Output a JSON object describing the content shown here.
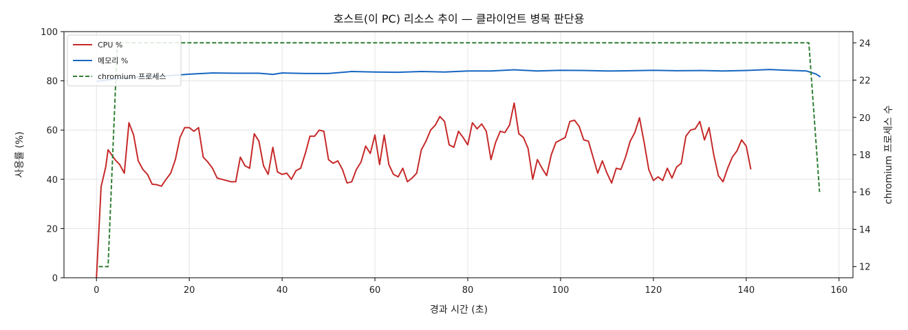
{
  "chart_data": {
    "type": "line",
    "title": "호스트(이 PC) 리소스 추이 — 클라이언트 병목 판단용",
    "xlabel": "경과 시간 (초)",
    "ylabel": "사용률 (%)",
    "y2label": "chromium 프로세스 수",
    "xlim": [
      -7,
      163
    ],
    "ylim": [
      0,
      100
    ],
    "y2lim": [
      11.4,
      24.6
    ],
    "xticks": [
      0,
      20,
      40,
      60,
      80,
      100,
      120,
      140,
      160
    ],
    "yticks": [
      0,
      20,
      40,
      60,
      80,
      100
    ],
    "y2ticks": [
      12,
      14,
      16,
      18,
      20,
      22,
      24
    ],
    "grid": true,
    "legend": "top-left",
    "series": [
      {
        "name": "CPU %",
        "axis": "left",
        "color": "#c62828",
        "style": "solid",
        "points": [
          [
            0,
            0
          ],
          [
            1,
            37
          ],
          [
            2,
            45
          ],
          [
            2.5,
            52
          ],
          [
            4,
            48
          ],
          [
            5,
            46
          ],
          [
            6,
            42.5
          ],
          [
            7,
            63
          ],
          [
            8,
            58
          ],
          [
            9,
            47.5
          ],
          [
            10,
            44
          ],
          [
            11,
            42
          ],
          [
            12,
            38
          ],
          [
            13,
            37.8
          ],
          [
            14,
            37.2
          ],
          [
            15,
            40
          ],
          [
            16,
            42.5
          ],
          [
            17,
            48
          ],
          [
            18,
            57
          ],
          [
            19,
            61
          ],
          [
            20,
            61
          ],
          [
            21,
            59.5
          ],
          [
            22,
            61
          ],
          [
            23,
            49
          ],
          [
            24,
            47
          ],
          [
            25,
            44.5
          ],
          [
            26,
            40.5
          ],
          [
            27,
            40
          ],
          [
            28,
            39.5
          ],
          [
            29,
            39
          ],
          [
            30,
            39
          ],
          [
            31,
            49
          ],
          [
            32,
            45.5
          ],
          [
            33,
            44.5
          ],
          [
            34,
            58.5
          ],
          [
            35,
            55.5
          ],
          [
            36,
            45.5
          ],
          [
            37,
            42
          ],
          [
            38,
            53
          ],
          [
            39,
            43
          ],
          [
            40,
            42
          ],
          [
            41,
            42.5
          ],
          [
            42,
            40
          ],
          [
            43,
            43.5
          ],
          [
            44,
            44.5
          ],
          [
            45,
            50.5
          ],
          [
            46,
            57.5
          ],
          [
            47,
            57.5
          ],
          [
            48,
            60
          ],
          [
            49,
            59.5
          ],
          [
            50,
            48
          ],
          [
            51,
            46.5
          ],
          [
            52,
            47.5
          ],
          [
            53,
            44
          ],
          [
            54,
            38.5
          ],
          [
            55,
            39
          ],
          [
            56,
            44
          ],
          [
            57,
            47
          ],
          [
            58,
            53.5
          ],
          [
            59,
            50.5
          ],
          [
            60,
            58
          ],
          [
            61,
            46
          ],
          [
            62,
            58
          ],
          [
            63,
            46
          ],
          [
            64,
            42
          ],
          [
            65,
            41
          ],
          [
            66,
            44.5
          ],
          [
            67,
            39
          ],
          [
            68,
            40.5
          ],
          [
            69,
            42.5
          ],
          [
            70,
            52
          ],
          [
            71,
            55.5
          ],
          [
            72,
            60
          ],
          [
            73,
            62
          ],
          [
            74,
            65.5
          ],
          [
            75,
            63.5
          ],
          [
            76,
            54
          ],
          [
            77,
            53
          ],
          [
            78,
            59.5
          ],
          [
            79,
            57
          ],
          [
            80,
            54
          ],
          [
            81,
            63
          ],
          [
            82,
            60.5
          ],
          [
            83,
            62.5
          ],
          [
            84,
            59.5
          ],
          [
            85,
            48
          ],
          [
            86,
            55
          ],
          [
            87,
            59.5
          ],
          [
            88,
            59
          ],
          [
            89,
            62
          ],
          [
            90,
            71
          ],
          [
            91,
            58.5
          ],
          [
            92,
            57
          ],
          [
            93,
            52.5
          ],
          [
            94,
            40
          ],
          [
            95,
            48
          ],
          [
            96,
            44.5
          ],
          [
            97,
            41.5
          ],
          [
            98,
            50
          ],
          [
            99,
            55
          ],
          [
            100,
            56
          ],
          [
            101,
            57
          ],
          [
            102,
            63.5
          ],
          [
            103,
            64
          ],
          [
            104,
            61.5
          ],
          [
            105,
            56
          ],
          [
            106,
            55.5
          ],
          [
            107,
            49
          ],
          [
            108,
            42.5
          ],
          [
            109,
            47.5
          ],
          [
            110,
            42.5
          ],
          [
            111,
            38.5
          ],
          [
            112,
            44.5
          ],
          [
            113,
            44
          ],
          [
            114,
            49
          ],
          [
            115,
            55.5
          ],
          [
            116,
            59
          ],
          [
            117,
            65
          ],
          [
            118,
            55
          ],
          [
            119,
            44
          ],
          [
            120,
            39.5
          ],
          [
            121,
            41
          ],
          [
            122,
            39.5
          ],
          [
            123,
            44.5
          ],
          [
            124,
            40.5
          ],
          [
            125,
            45
          ],
          [
            126,
            46.5
          ],
          [
            127,
            57.5
          ],
          [
            128,
            60
          ],
          [
            129,
            60.5
          ],
          [
            130,
            63.5
          ],
          [
            131,
            56
          ],
          [
            132,
            61
          ],
          [
            133,
            50
          ],
          [
            134,
            41.5
          ],
          [
            135,
            39
          ],
          [
            136,
            44.5
          ],
          [
            137,
            49
          ],
          [
            138,
            51.5
          ],
          [
            139,
            56
          ],
          [
            140,
            53.5
          ],
          [
            141,
            44
          ]
        ]
      },
      {
        "name": "메모리 %",
        "axis": "left",
        "color": "#1565c0",
        "style": "solid",
        "points": [
          [
            0,
            79.8
          ],
          [
            2,
            80.3
          ],
          [
            5,
            81
          ],
          [
            10,
            81.7
          ],
          [
            15,
            82
          ],
          [
            20,
            82.7
          ],
          [
            25,
            83.2
          ],
          [
            30,
            83.1
          ],
          [
            35,
            83.1
          ],
          [
            38,
            82.6
          ],
          [
            40,
            83.2
          ],
          [
            45,
            83
          ],
          [
            50,
            83
          ],
          [
            55,
            83.8
          ],
          [
            60,
            83.6
          ],
          [
            65,
            83.5
          ],
          [
            70,
            83.8
          ],
          [
            75,
            83.6
          ],
          [
            80,
            84
          ],
          [
            85,
            84
          ],
          [
            90,
            84.5
          ],
          [
            95,
            84
          ],
          [
            100,
            84.3
          ],
          [
            105,
            84.2
          ],
          [
            110,
            84
          ],
          [
            115,
            84.1
          ],
          [
            120,
            84.3
          ],
          [
            125,
            84.1
          ],
          [
            130,
            84.2
          ],
          [
            135,
            84
          ],
          [
            140,
            84.2
          ],
          [
            145,
            84.6
          ],
          [
            150,
            84.2
          ],
          [
            153,
            84
          ],
          [
            155,
            82.8
          ],
          [
            156,
            81.6
          ]
        ]
      },
      {
        "name": "chromium 프로세스",
        "axis": "right",
        "color": "#2e7d32",
        "style": "dashed",
        "points": [
          [
            0.5,
            12
          ],
          [
            2.5,
            12
          ],
          [
            4.5,
            24
          ],
          [
            153.5,
            24
          ],
          [
            155.8,
            16
          ]
        ]
      }
    ]
  }
}
